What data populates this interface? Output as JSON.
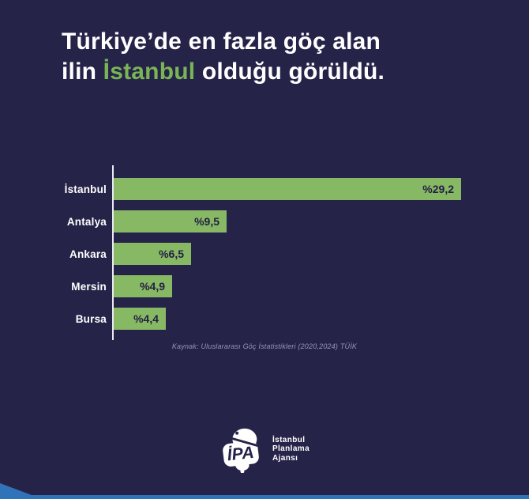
{
  "title": {
    "line1": "Türkiye’de en fazla göç alan",
    "line2_prefix": "ilin ",
    "line2_highlight": "İstanbul",
    "line2_suffix": " olduğu görüldü."
  },
  "chart_data": {
    "type": "bar",
    "orientation": "horizontal",
    "title": "Türkiye’de en fazla göç alan ilin İstanbul olduğu görüldü.",
    "categories": [
      "İstanbul",
      "Antalya",
      "Ankara",
      "Mersin",
      "Bursa"
    ],
    "values": [
      29.2,
      9.5,
      6.5,
      4.9,
      4.4
    ],
    "value_labels": [
      "%29,2",
      "%9,5",
      "%6,5",
      "%4,9",
      "%4,4"
    ],
    "xlabel": "",
    "ylabel": "",
    "xlim": [
      0,
      29.2
    ],
    "grid": false,
    "legend": false,
    "bar_color": "#87b863",
    "value_label_color": "#232045",
    "axis_color": "#ece9f4"
  },
  "source_note": "Kaynak: Uluslararası Göç İstatistikleri (2020,2024) TÜİK",
  "footer": {
    "logo_text": "İPA",
    "org_lines": [
      "İstanbul",
      "Planlama",
      "Ajansı"
    ]
  },
  "colors": {
    "background": "#262349",
    "accent_green": "#79b455",
    "bottom_bar_blue": "#3173b9",
    "text_white": "#ffffff",
    "muted_note": "#9a95b5"
  }
}
